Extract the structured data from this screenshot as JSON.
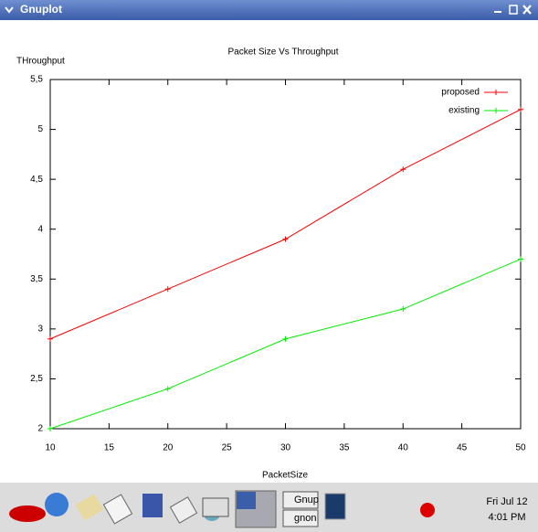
{
  "window": {
    "title": "Gnuplot"
  },
  "taskbar": {
    "buttons": [
      "Gnup",
      "gnon"
    ],
    "clock": {
      "date": "Fri Jul 12",
      "time": "4:01 PM"
    }
  },
  "chart_data": {
    "type": "line",
    "title": "Packet Size Vs Throughput",
    "x_label": "PacketSize",
    "y_label": "THroughput",
    "x": [
      10,
      20,
      30,
      40,
      50
    ],
    "series": [
      {
        "name": "proposed",
        "color": "#ff0000",
        "values": [
          2.9,
          3.4,
          3.9,
          4.6,
          5.2
        ]
      },
      {
        "name": "existing",
        "color": "#00ee00",
        "values": [
          2.0,
          2.4,
          2.9,
          3.2,
          3.7
        ]
      }
    ],
    "xlim": [
      10,
      50
    ],
    "xticks": [
      10,
      15,
      20,
      25,
      30,
      35,
      40,
      45,
      50
    ],
    "ylim": [
      2,
      5.5
    ],
    "yticks": [
      2,
      {
        "value": 2.5,
        "label": "2,5"
      },
      3,
      {
        "value": 3.5,
        "label": "3,5"
      },
      4,
      {
        "value": 4.5,
        "label": "4,5"
      },
      5,
      {
        "value": 5.5,
        "label": "5,5"
      }
    ],
    "grid": false,
    "legend": "top-right"
  }
}
